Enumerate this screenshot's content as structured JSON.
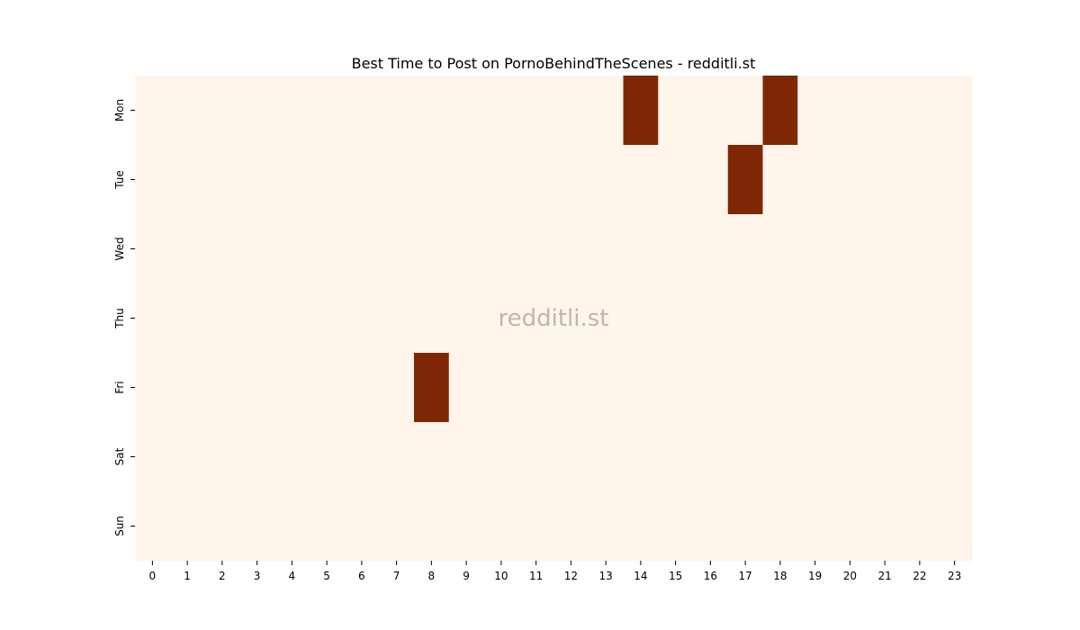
{
  "chart_data": {
    "type": "heatmap",
    "title": "Best Time to Post on PornoBehindTheScenes - redditli.st",
    "watermark": "redditli.st",
    "xlabel": "",
    "ylabel": "",
    "x_categories": [
      "0",
      "1",
      "2",
      "3",
      "4",
      "5",
      "6",
      "7",
      "8",
      "9",
      "10",
      "11",
      "12",
      "13",
      "14",
      "15",
      "16",
      "17",
      "18",
      "19",
      "20",
      "21",
      "22",
      "23"
    ],
    "y_categories": [
      "Mon",
      "Tue",
      "Wed",
      "Thu",
      "Fri",
      "Sat",
      "Sun"
    ],
    "values": [
      [
        0,
        0,
        0,
        0,
        0,
        0,
        0,
        0,
        0,
        0,
        0,
        0,
        0,
        0,
        1,
        0,
        0,
        0,
        1,
        0,
        0,
        0,
        0,
        0
      ],
      [
        0,
        0,
        0,
        0,
        0,
        0,
        0,
        0,
        0,
        0,
        0,
        0,
        0,
        0,
        0,
        0,
        0,
        1,
        0,
        0,
        0,
        0,
        0,
        0
      ],
      [
        0,
        0,
        0,
        0,
        0,
        0,
        0,
        0,
        0,
        0,
        0,
        0,
        0,
        0,
        0,
        0,
        0,
        0,
        0,
        0,
        0,
        0,
        0,
        0
      ],
      [
        0,
        0,
        0,
        0,
        0,
        0,
        0,
        0,
        0,
        0,
        0,
        0,
        0,
        0,
        0,
        0,
        0,
        0,
        0,
        0,
        0,
        0,
        0,
        0
      ],
      [
        0,
        0,
        0,
        0,
        0,
        0,
        0,
        0,
        1,
        0,
        0,
        0,
        0,
        0,
        0,
        0,
        0,
        0,
        0,
        0,
        0,
        0,
        0,
        0
      ],
      [
        0,
        0,
        0,
        0,
        0,
        0,
        0,
        0,
        0,
        0,
        0,
        0,
        0,
        0,
        0,
        0,
        0,
        0,
        0,
        0,
        0,
        0,
        0,
        0
      ],
      [
        0,
        0,
        0,
        0,
        0,
        0,
        0,
        0,
        0,
        0,
        0,
        0,
        0,
        0,
        0,
        0,
        0,
        0,
        0,
        0,
        0,
        0,
        0,
        0
      ]
    ],
    "color_scale": {
      "low": "#fff5eb",
      "high": "#7f2704"
    },
    "grid": false,
    "legend": "none"
  }
}
